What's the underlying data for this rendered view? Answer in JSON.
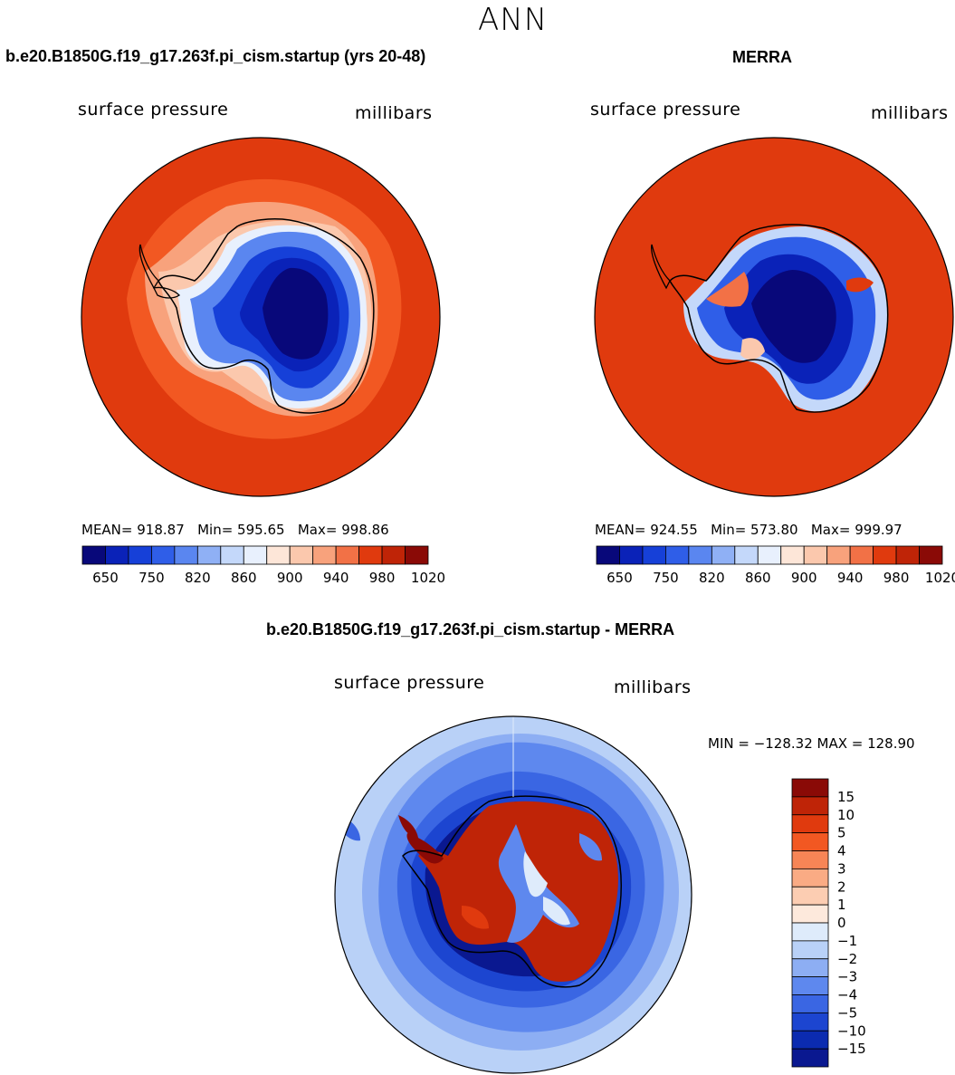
{
  "page_title": "ANN",
  "panels": [
    {
      "title": "b.e20.B1850G.f19_g17.263f.pi_cism.startup (yrs 20-48)",
      "variable": "surface pressure",
      "units": "millibars",
      "stats": {
        "mean_label": "MEAN=",
        "mean": "918.87",
        "min_label": "Min=",
        "min": "595.65",
        "max_label": "Max=",
        "max": "998.86"
      }
    },
    {
      "title": "MERRA",
      "variable": "surface pressure",
      "units": "millibars",
      "stats": {
        "mean_label": "MEAN=",
        "mean": "924.55",
        "min_label": "Min=",
        "min": "573.80",
        "max_label": "Max=",
        "max": "999.97"
      }
    },
    {
      "title": "b.e20.B1850G.f19_g17.263f.pi_cism.startup - MERRA",
      "variable": "surface pressure",
      "units": "millibars",
      "range_text": "MIN = −128.32  MAX = 128.90"
    }
  ],
  "chart_data": [
    {
      "type": "heatmap",
      "title": "b.e20.B1850G.f19_g17.263f.pi_cism.startup (yrs 20-48)",
      "projection": "south polar stereographic",
      "variable": "surface pressure",
      "units": "millibars",
      "mean": 918.87,
      "min": 595.65,
      "max": 998.86,
      "colorbar_tick_labels": [
        "650",
        "750",
        "820",
        "860",
        "900",
        "940",
        "980",
        "1020"
      ],
      "colorbar_colors": [
        "#08087a",
        "#0a22b8",
        "#1640d8",
        "#2f5ee8",
        "#5a86f0",
        "#8fb0f5",
        "#c4d8fa",
        "#e8f0fd",
        "#fde6d8",
        "#fbc8ad",
        "#f8a27c",
        "#f27146",
        "#e03a0e",
        "#bf2407",
        "#8a0a06"
      ]
    },
    {
      "type": "heatmap",
      "title": "MERRA",
      "projection": "south polar stereographic",
      "variable": "surface pressure",
      "units": "millibars",
      "mean": 924.55,
      "min": 573.8,
      "max": 999.97,
      "colorbar_tick_labels": [
        "650",
        "750",
        "820",
        "860",
        "900",
        "940",
        "980",
        "1020"
      ],
      "colorbar_colors": [
        "#08087a",
        "#0a22b8",
        "#1640d8",
        "#2f5ee8",
        "#5a86f0",
        "#8fb0f5",
        "#c4d8fa",
        "#e8f0fd",
        "#fde6d8",
        "#fbc8ad",
        "#f8a27c",
        "#f27146",
        "#e03a0e",
        "#bf2407",
        "#8a0a06"
      ]
    },
    {
      "type": "heatmap",
      "title": "b.e20.B1850G.f19_g17.263f.pi_cism.startup - MERRA",
      "projection": "south polar stereographic",
      "variable": "surface pressure",
      "units": "millibars",
      "min": -128.32,
      "max": 128.9,
      "colorbar_tick_labels": [
        "15",
        "10",
        "5",
        "4",
        "3",
        "2",
        "1",
        "0",
        "−1",
        "−2",
        "−3",
        "−4",
        "−5",
        "−10",
        "−15"
      ],
      "colorbar_colors": [
        "#8a0a06",
        "#bf2407",
        "#e03a0e",
        "#f25822",
        "#f78556",
        "#faab84",
        "#fccdb2",
        "#fde9dc",
        "#deebfb",
        "#b9d1f7",
        "#8daef3",
        "#5e88ee",
        "#3a66e3",
        "#1c45d0",
        "#0b2bb0",
        "#0a1890"
      ]
    }
  ]
}
